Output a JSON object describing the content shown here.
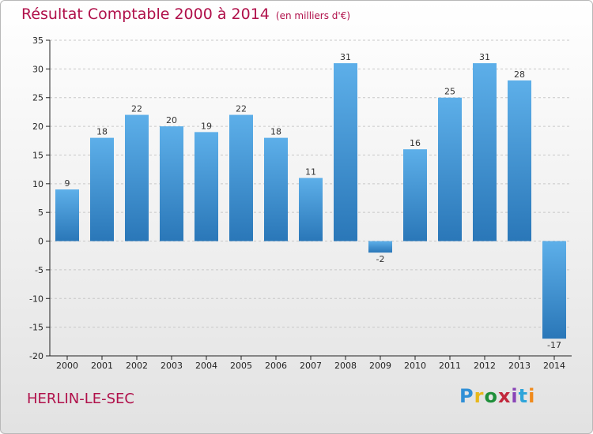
{
  "header": {
    "title": "Résultat Comptable 2000 à 2014",
    "subtitle": "(en milliers d'€)"
  },
  "footer": {
    "commune": "HERLIN-LE-SEC",
    "logo_text": "Proxiti",
    "logo_colors": [
      "#2f8fd6",
      "#e8b81c",
      "#1f8f3a",
      "#c1273b",
      "#8a44b7",
      "#2fa5da",
      "#f08a1c"
    ]
  },
  "colors": {
    "bar_light": "#5dafe9",
    "bar_dark": "#2a77b8",
    "grid": "#c8c8c8",
    "axis": "#222222",
    "accent": "#b0104a"
  },
  "chart_data": {
    "type": "bar",
    "title": "Résultat Comptable 2000 à 2014",
    "subtitle": "(en milliers d'€)",
    "xlabel": "",
    "ylabel": "",
    "categories": [
      "2000",
      "2001",
      "2002",
      "2003",
      "2004",
      "2005",
      "2006",
      "2007",
      "2008",
      "2009",
      "2010",
      "2011",
      "2012",
      "2013",
      "2014"
    ],
    "values": [
      9,
      18,
      22,
      20,
      19,
      22,
      18,
      11,
      31,
      -2,
      16,
      25,
      31,
      28,
      -17
    ],
    "data_labels": [
      "9",
      "18",
      "22",
      "20",
      "19",
      "22",
      "18",
      "11",
      "31",
      "-2",
      "16",
      "25",
      "31",
      "28",
      "-17"
    ],
    "ylim": [
      -20,
      35
    ],
    "yticks": [
      -20,
      -15,
      -10,
      -5,
      0,
      5,
      10,
      15,
      20,
      25,
      30,
      35
    ],
    "ytick_labels": [
      "-20",
      "-15",
      "-10",
      "-5",
      "0",
      "5",
      "10",
      "15",
      "20",
      "25",
      "30",
      "35"
    ],
    "grid": true,
    "legend": "none"
  }
}
